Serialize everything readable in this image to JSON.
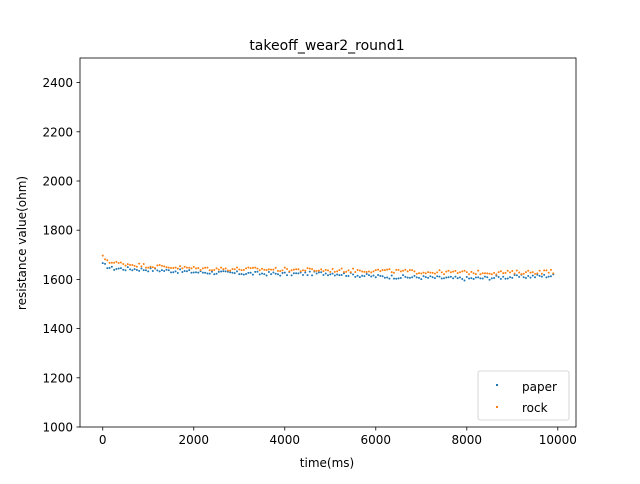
{
  "chart_data": {
    "type": "scatter",
    "title": "takeoff_wear2_round1",
    "xlabel": "time(ms)",
    "ylabel": "resistance value(ohm)",
    "xlim": [
      -500,
      10400
    ],
    "ylim": [
      1000,
      2500
    ],
    "xticks": [
      0,
      2000,
      4000,
      6000,
      8000,
      10000
    ],
    "yticks": [
      1000,
      1200,
      1400,
      1600,
      1800,
      2000,
      2200,
      2400
    ],
    "grid": false,
    "legend_position": "lower-right",
    "series": [
      {
        "name": "paper",
        "color": "#1f77b4",
        "x_start": 0,
        "x_end": 9900,
        "x_step": 50,
        "trend": [
          [
            0,
            1660
          ],
          [
            200,
            1645
          ],
          [
            1000,
            1640
          ],
          [
            2000,
            1630
          ],
          [
            3000,
            1625
          ],
          [
            4000,
            1622
          ],
          [
            5000,
            1625
          ],
          [
            6000,
            1612
          ],
          [
            7000,
            1608
          ],
          [
            8000,
            1603
          ],
          [
            9000,
            1610
          ],
          [
            9900,
            1615
          ]
        ]
      },
      {
        "name": "rock",
        "color": "#ff7f0e",
        "x_start": 0,
        "x_end": 9900,
        "x_step": 50,
        "trend": [
          [
            0,
            1690
          ],
          [
            200,
            1668
          ],
          [
            1000,
            1655
          ],
          [
            2000,
            1645
          ],
          [
            3000,
            1642
          ],
          [
            4000,
            1640
          ],
          [
            5000,
            1637
          ],
          [
            6000,
            1636
          ],
          [
            7000,
            1630
          ],
          [
            8000,
            1628
          ],
          [
            9000,
            1628
          ],
          [
            9900,
            1632
          ]
        ]
      }
    ]
  }
}
